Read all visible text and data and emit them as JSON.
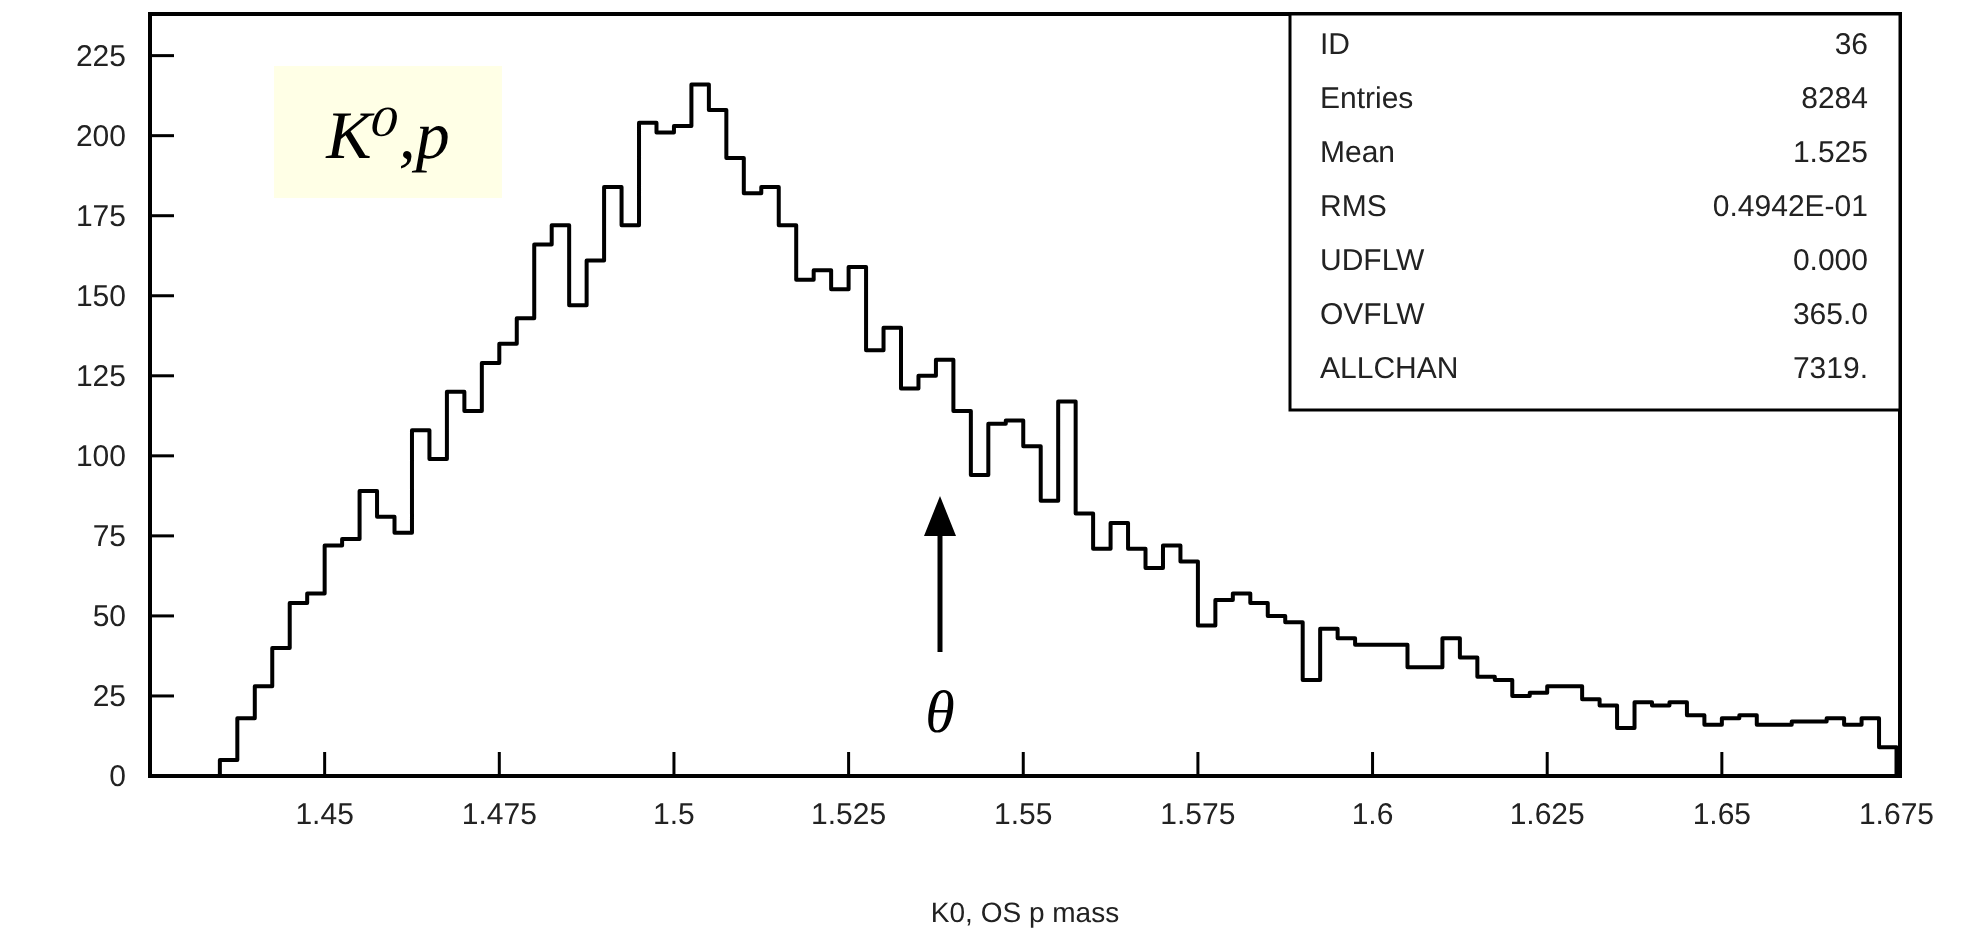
{
  "chart_data": {
    "type": "histogram",
    "xlabel": "K0, OS p mass",
    "bins": [
      1.425,
      1.4275,
      1.43,
      1.4325,
      1.435,
      1.4375,
      1.44,
      1.4425,
      1.445,
      1.4475,
      1.45,
      1.4525,
      1.455,
      1.4575,
      1.46,
      1.4625,
      1.465,
      1.4675,
      1.47,
      1.4725,
      1.475,
      1.4775,
      1.48,
      1.4825,
      1.485,
      1.4875,
      1.49,
      1.4925,
      1.495,
      1.4975,
      1.5,
      1.5025,
      1.505,
      1.5075,
      1.51,
      1.5125,
      1.515,
      1.5175,
      1.52,
      1.5225,
      1.525,
      1.5275,
      1.53,
      1.5325,
      1.535,
      1.5375,
      1.54,
      1.5425,
      1.545,
      1.5475,
      1.55,
      1.5525,
      1.555,
      1.5575,
      1.56,
      1.5625,
      1.565,
      1.5675,
      1.57,
      1.5725,
      1.575,
      1.5775,
      1.58,
      1.5825,
      1.585,
      1.5875,
      1.59,
      1.5925,
      1.595,
      1.5975,
      1.6,
      1.6025,
      1.605,
      1.6075,
      1.61,
      1.6125,
      1.615,
      1.6175,
      1.62,
      1.6225,
      1.625,
      1.6275,
      1.63,
      1.6325,
      1.635,
      1.6375,
      1.64,
      1.6425,
      1.645,
      1.6475,
      1.65,
      1.6525,
      1.655,
      1.6575,
      1.66,
      1.6625,
      1.665,
      1.6675,
      1.67,
      1.6725,
      1.675
    ],
    "values": [
      0,
      0,
      0,
      0,
      5,
      18,
      28,
      40,
      54,
      57,
      72,
      74,
      89,
      81,
      76,
      108,
      99,
      120,
      114,
      129,
      135,
      143,
      166,
      172,
      147,
      161,
      184,
      172,
      204,
      201,
      203,
      216,
      208,
      193,
      182,
      184,
      172,
      155,
      158,
      152,
      159,
      133,
      140,
      121,
      125,
      130,
      114,
      94,
      110,
      111,
      103,
      86,
      117,
      82,
      71,
      79,
      71,
      65,
      72,
      67,
      47,
      55,
      57,
      54,
      50,
      48,
      30,
      46,
      43,
      41,
      41,
      41,
      34,
      34,
      43,
      37,
      31,
      30,
      25,
      26,
      28,
      28,
      24,
      22,
      15,
      23,
      22,
      23,
      19,
      16,
      18,
      19,
      16,
      16,
      17,
      17,
      18,
      16,
      18,
      9
    ],
    "color": "#000000",
    "xlim": [
      1.425,
      1.6755
    ],
    "ylim": [
      0,
      238
    ],
    "xticks": [
      1.45,
      1.475,
      1.5,
      1.525,
      1.55,
      1.575,
      1.6,
      1.625,
      1.65,
      1.675
    ],
    "yticks": [
      0,
      25,
      50,
      75,
      100,
      125,
      150,
      175,
      200,
      225
    ],
    "grid": false,
    "annotations": [
      "K⁰,p",
      "θ",
      "ID",
      "36",
      "Entries",
      "8284",
      "Mean",
      "1.525",
      "RMS",
      "0.4942E-01",
      "UDFLW",
      "0.000",
      "OVFLW",
      "365.0",
      "ALLCHAN",
      "7319."
    ]
  }
}
